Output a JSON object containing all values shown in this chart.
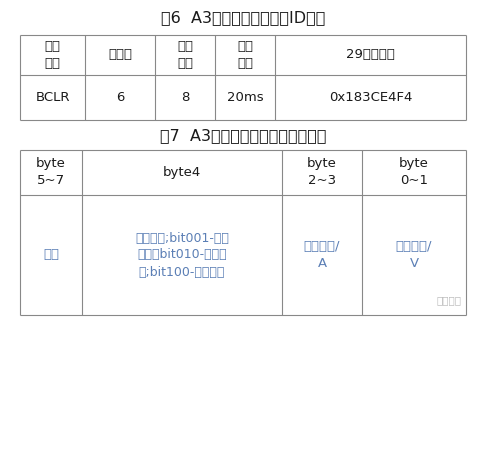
{
  "title1": "表6  A3电池充电级别需求ID信息",
  "title2": "表7  A3电池充电级别需求数据信息",
  "t1_headers": [
    "报文\n代号",
    "优先权",
    "数据\n长度",
    "刷新\n速率",
    "29位标示符"
  ],
  "t1_row": [
    "BCLR",
    "6",
    "8",
    "20ms",
    "0x183CE4F4"
  ],
  "t2_headers": [
    "byte\n5~7",
    "byte4",
    "byte\n2~3",
    "byte\n0~1"
  ],
  "t2_row_col0": "预留",
  "t2_row_col1": "充电模式;bit001-恒压\n充电；bit010-恒流充\n电;bit100-浮充充电",
  "t2_row_col2": "电流需求/\nA",
  "t2_row_col3": "电压需求/\nV",
  "watermark": "电动学堂",
  "bg_color": "#ffffff",
  "black": "#1a1a1a",
  "blue": "#5b7fb5",
  "gray_line": "#888888",
  "title_fs": 11.5,
  "header_fs": 9.5,
  "data_fs": 9.5,
  "small_fs": 7.5
}
